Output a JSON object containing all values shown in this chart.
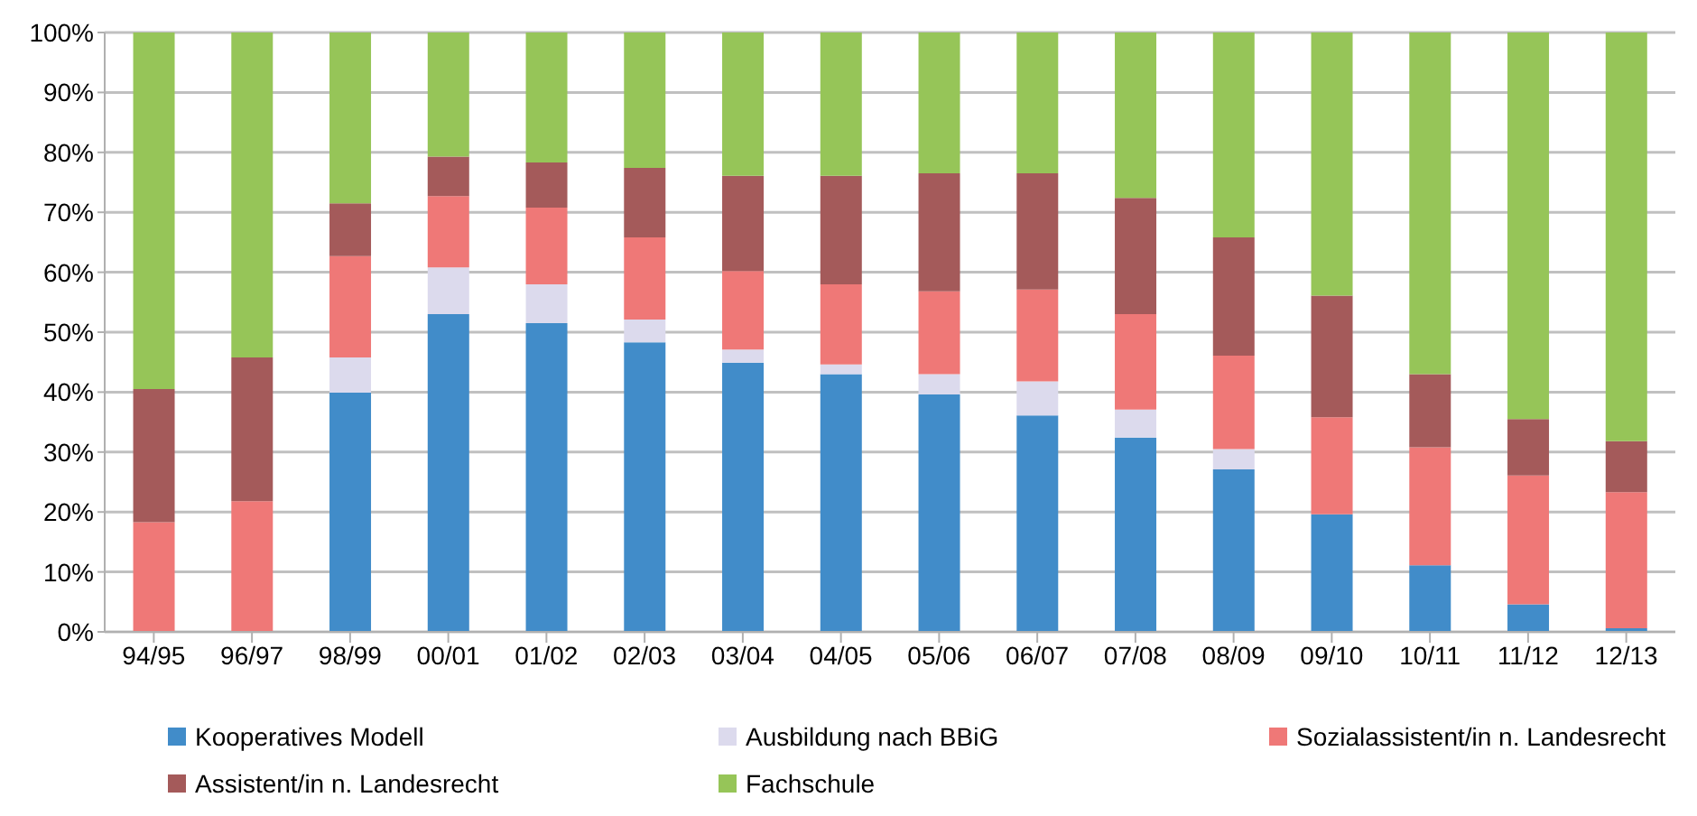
{
  "chart_data": {
    "type": "bar",
    "stacked": true,
    "categories": [
      "94/95",
      "96/97",
      "98/99",
      "00/01",
      "01/02",
      "02/03",
      "03/04",
      "04/05",
      "05/06",
      "06/07",
      "07/08",
      "08/09",
      "09/10",
      "10/11",
      "11/12",
      "12/13"
    ],
    "series": [
      {
        "name": "Kooperatives Modell",
        "color": "#418cc9",
        "values": [
          0,
          0,
          39.9,
          53.0,
          51.5,
          48.3,
          44.9,
          43.0,
          39.6,
          36.1,
          32.4,
          27.1,
          19.6,
          11.1,
          4.6,
          0.6
        ]
      },
      {
        "name": "Ausbildung nach BBiG",
        "color": "#dcdaed",
        "values": [
          0,
          0,
          5.9,
          7.8,
          6.5,
          3.8,
          2.2,
          1.6,
          3.4,
          5.7,
          4.7,
          3.4,
          0,
          0,
          0,
          0
        ]
      },
      {
        "name": "Sozialassistent/in n. Landesrecht",
        "color": "#ef7877",
        "values": [
          18.3,
          21.8,
          16.9,
          11.9,
          12.8,
          13.7,
          13.1,
          13.4,
          13.8,
          15.3,
          15.9,
          15.6,
          16.2,
          19.7,
          21.5,
          22.7
        ]
      },
      {
        "name": "Assistent/in n. Landesrecht",
        "color": "#a45a5a",
        "values": [
          22.2,
          24.0,
          8.8,
          6.6,
          7.5,
          11.6,
          15.9,
          18.1,
          19.7,
          19.4,
          19.4,
          19.7,
          20.3,
          12.2,
          9.4,
          8.5
        ]
      },
      {
        "name": "Fachschule",
        "color": "#96c558",
        "values": [
          59.5,
          54.2,
          28.5,
          20.7,
          21.7,
          22.6,
          23.9,
          23.9,
          23.5,
          23.5,
          27.6,
          34.2,
          43.9,
          57.0,
          64.5,
          68.2
        ]
      }
    ],
    "ylim": [
      0,
      100
    ],
    "yticks": [
      {
        "value": 0,
        "label": "0%"
      },
      {
        "value": 10,
        "label": "10%"
      },
      {
        "value": 20,
        "label": "20%"
      },
      {
        "value": 30,
        "label": "30%"
      },
      {
        "value": 40,
        "label": "40%"
      },
      {
        "value": 50,
        "label": "50%"
      },
      {
        "value": 60,
        "label": "60%"
      },
      {
        "value": 70,
        "label": "70%"
      },
      {
        "value": 80,
        "label": "80%"
      },
      {
        "value": 90,
        "label": "90%"
      },
      {
        "value": 100,
        "label": "100%"
      }
    ],
    "grid": "y",
    "legend": "bottom"
  }
}
